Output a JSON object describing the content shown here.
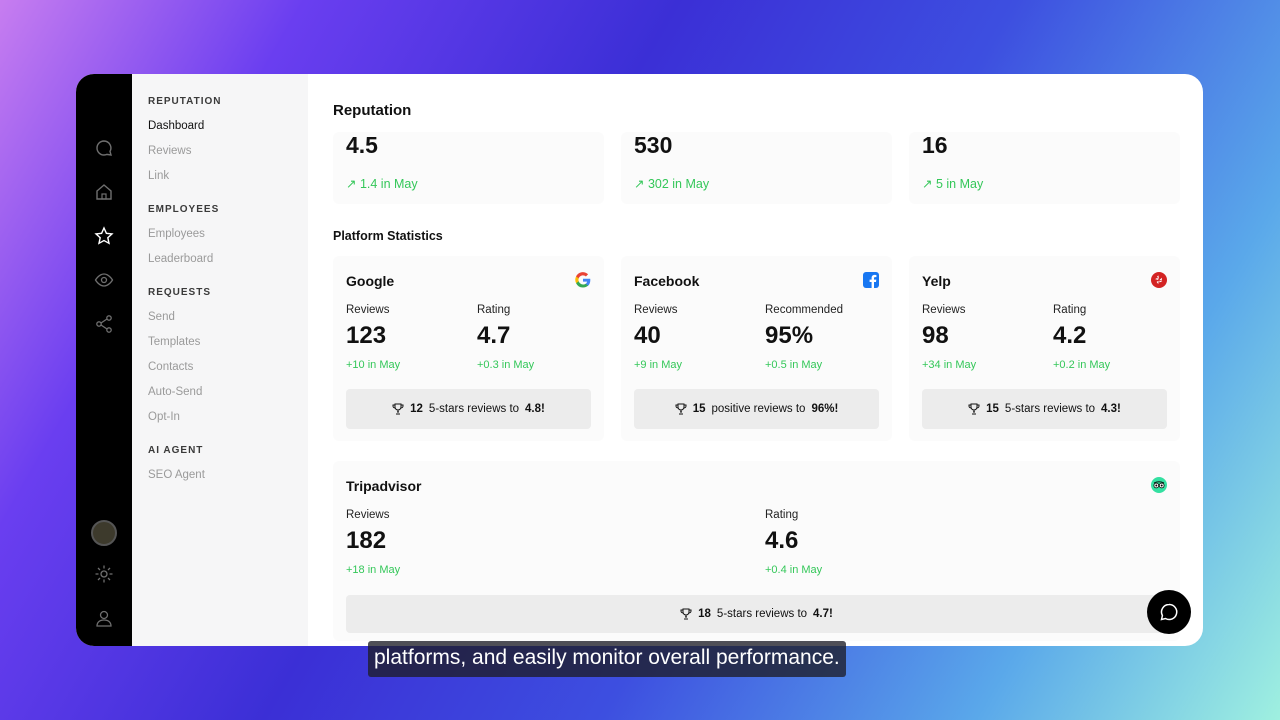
{
  "sidebar": {
    "sections": [
      {
        "title": "REPUTATION",
        "items": [
          "Dashboard",
          "Reviews",
          "Link"
        ]
      },
      {
        "title": "EMPLOYEES",
        "items": [
          "Employees",
          "Leaderboard"
        ]
      },
      {
        "title": "REQUESTS",
        "items": [
          "Send",
          "Templates",
          "Contacts",
          "Auto-Send",
          "Opt-In"
        ]
      },
      {
        "title": "AI AGENT",
        "items": [
          "SEO Agent"
        ]
      }
    ],
    "active_item": "Dashboard"
  },
  "rail_icons": [
    "chat-icon",
    "home-icon",
    "star-icon",
    "eye-icon",
    "share-icon",
    "avatar",
    "gear-icon",
    "user-icon"
  ],
  "main": {
    "title": "Reputation",
    "top_stats": [
      {
        "value": "4.5",
        "delta": "↗ 1.4 in May"
      },
      {
        "value": "530",
        "delta": "↗ 302 in May"
      },
      {
        "value": "16",
        "delta": "↗ 5 in May"
      }
    ],
    "platform_title": "Platform Statistics",
    "platforms": [
      {
        "name": "Google",
        "logo": "google-icon",
        "m1": {
          "label": "Reviews",
          "value": "123",
          "change": "+10 in May"
        },
        "m2": {
          "label": "Rating",
          "value": "4.7",
          "change": "+0.3 in May"
        },
        "goal": {
          "count": "12",
          "mid": "5-stars reviews to",
          "target": "4.8!"
        }
      },
      {
        "name": "Facebook",
        "logo": "facebook-icon",
        "m1": {
          "label": "Reviews",
          "value": "40",
          "change": "+9 in May"
        },
        "m2": {
          "label": "Recommended",
          "value": "95%",
          "change": "+0.5 in May"
        },
        "goal": {
          "count": "15",
          "mid": "positive reviews to",
          "target": "96%!"
        }
      },
      {
        "name": "Yelp",
        "logo": "yelp-icon",
        "m1": {
          "label": "Reviews",
          "value": "98",
          "change": "+34 in May"
        },
        "m2": {
          "label": "Rating",
          "value": "4.2",
          "change": "+0.2 in May"
        },
        "goal": {
          "count": "15",
          "mid": "5-stars reviews to",
          "target": "4.3!"
        }
      }
    ],
    "tripadvisor": {
      "name": "Tripadvisor",
      "logo": "tripadvisor-icon",
      "m1": {
        "label": "Reviews",
        "value": "182",
        "change": "+18 in May"
      },
      "m2": {
        "label": "Rating",
        "value": "4.6",
        "change": "+0.4 in May"
      },
      "goal": {
        "count": "18",
        "mid": "5-stars reviews to",
        "target": "4.7!"
      }
    }
  },
  "caption": "platforms, and easily monitor overall performance.",
  "colors": {
    "accent_green": "#34c759",
    "rail": "#000000",
    "sidebar_bg": "#f6f6f7"
  }
}
